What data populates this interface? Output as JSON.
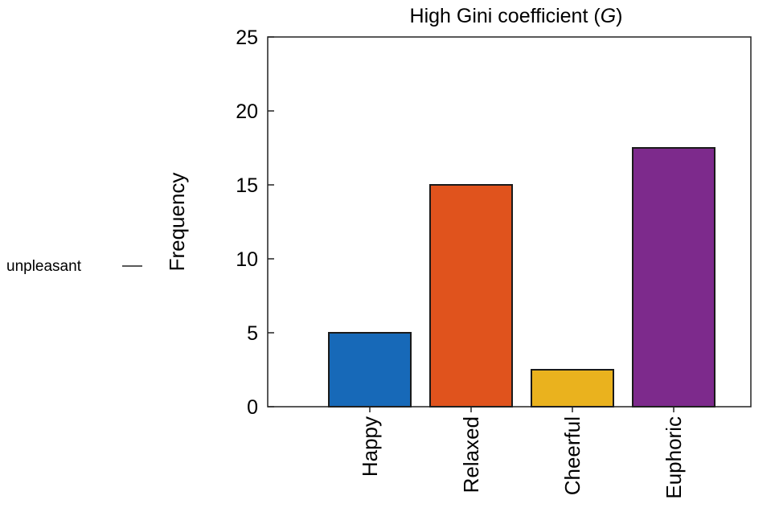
{
  "chart_data": {
    "type": "bar",
    "title": "High Gini coefficient (",
    "title_symbol": "G",
    "title_suffix": ")",
    "xlabel": "",
    "ylabel": "Frequency",
    "categories": [
      "Happy",
      "Relaxed",
      "Cheerful",
      "Euphoric"
    ],
    "values": [
      5,
      15,
      2.5,
      17.5
    ],
    "colors": [
      "#1769b8",
      "#e0531d",
      "#eab21e",
      "#7d2a8c"
    ],
    "ylim": [
      0,
      25
    ],
    "yticks": [
      0,
      5,
      10,
      15,
      20,
      25
    ],
    "grid": false,
    "annotations": [
      {
        "text": "unpleasant"
      }
    ]
  }
}
